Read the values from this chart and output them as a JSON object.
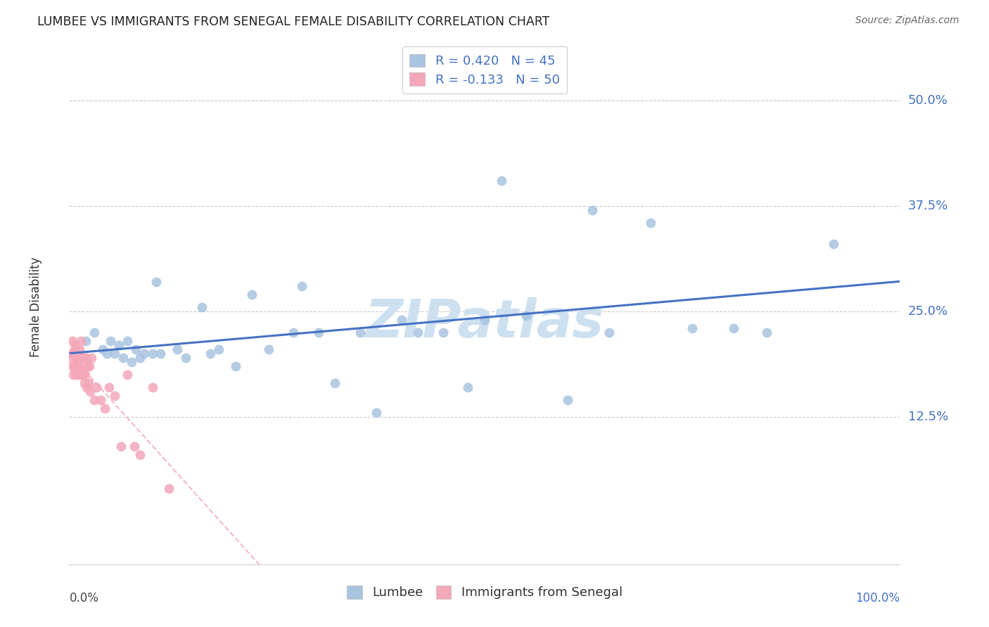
{
  "title": "LUMBEE VS IMMIGRANTS FROM SENEGAL FEMALE DISABILITY CORRELATION CHART",
  "source": "Source: ZipAtlas.com",
  "ylabel": "Female Disability",
  "ytick_vals": [
    0.125,
    0.25,
    0.375,
    0.5
  ],
  "ytick_labels": [
    "12.5%",
    "25.0%",
    "37.5%",
    "50.0%"
  ],
  "xlim": [
    0.0,
    1.0
  ],
  "ylim": [
    -0.05,
    0.56
  ],
  "lumbee_R": 0.42,
  "lumbee_N": 45,
  "senegal_R": -0.133,
  "senegal_N": 50,
  "lumbee_color": "#a8c4e0",
  "senegal_color": "#f4a7b9",
  "lumbee_line_color": "#4472c4",
  "senegal_line_color": "#f0a0b8",
  "watermark": "ZIPatlas",
  "watermark_color": "#cce0f0",
  "lumbee_x": [
    0.02,
    0.03,
    0.04,
    0.045,
    0.05,
    0.055,
    0.06,
    0.065,
    0.07,
    0.075,
    0.08,
    0.085,
    0.09,
    0.1,
    0.105,
    0.11,
    0.13,
    0.14,
    0.16,
    0.17,
    0.18,
    0.2,
    0.22,
    0.24,
    0.27,
    0.28,
    0.3,
    0.32,
    0.35,
    0.37,
    0.4,
    0.42,
    0.45,
    0.48,
    0.5,
    0.52,
    0.55,
    0.6,
    0.63,
    0.65,
    0.7,
    0.75,
    0.8,
    0.84,
    0.92
  ],
  "lumbee_y": [
    0.215,
    0.225,
    0.205,
    0.2,
    0.215,
    0.2,
    0.21,
    0.195,
    0.215,
    0.19,
    0.205,
    0.195,
    0.2,
    0.2,
    0.285,
    0.2,
    0.205,
    0.195,
    0.255,
    0.2,
    0.205,
    0.185,
    0.27,
    0.205,
    0.225,
    0.28,
    0.225,
    0.165,
    0.225,
    0.13,
    0.24,
    0.225,
    0.225,
    0.16,
    0.24,
    0.405,
    0.245,
    0.145,
    0.37,
    0.225,
    0.355,
    0.23,
    0.23,
    0.225,
    0.33
  ],
  "senegal_x": [
    0.002,
    0.003,
    0.004,
    0.004,
    0.005,
    0.005,
    0.006,
    0.006,
    0.007,
    0.007,
    0.008,
    0.008,
    0.009,
    0.009,
    0.01,
    0.01,
    0.011,
    0.011,
    0.012,
    0.012,
    0.013,
    0.013,
    0.014,
    0.014,
    0.015,
    0.015,
    0.016,
    0.017,
    0.018,
    0.018,
    0.019,
    0.02,
    0.021,
    0.022,
    0.023,
    0.024,
    0.025,
    0.027,
    0.03,
    0.033,
    0.038,
    0.043,
    0.048,
    0.055,
    0.062,
    0.07,
    0.078,
    0.085,
    0.1,
    0.12
  ],
  "senegal_y": [
    0.195,
    0.2,
    0.185,
    0.215,
    0.175,
    0.2,
    0.185,
    0.205,
    0.18,
    0.21,
    0.175,
    0.2,
    0.185,
    0.195,
    0.18,
    0.195,
    0.175,
    0.195,
    0.185,
    0.205,
    0.175,
    0.195,
    0.18,
    0.215,
    0.18,
    0.195,
    0.175,
    0.195,
    0.165,
    0.195,
    0.175,
    0.195,
    0.16,
    0.185,
    0.165,
    0.185,
    0.155,
    0.195,
    0.145,
    0.16,
    0.145,
    0.135,
    0.16,
    0.15,
    0.09,
    0.175,
    0.09,
    0.08,
    0.16,
    0.04
  ]
}
